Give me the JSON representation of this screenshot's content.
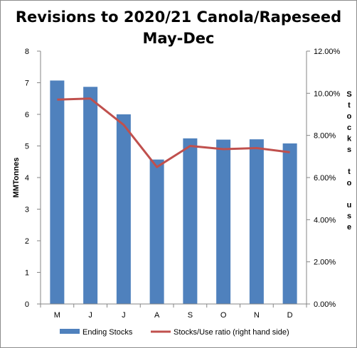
{
  "chart_data": {
    "type": "bar",
    "title_lines": [
      "Revisions to 2020/21 Canola/Rapeseed",
      "May-Dec"
    ],
    "categories": [
      "M",
      "J",
      "J",
      "A",
      "S",
      "O",
      "N",
      "D"
    ],
    "ylabel": "MMTonnes",
    "y2label": "Stocks to use",
    "ylim": [
      0,
      8
    ],
    "yticks": [
      "0",
      "1",
      "2",
      "3",
      "4",
      "5",
      "6",
      "7",
      "8"
    ],
    "y2lim": [
      0,
      12
    ],
    "y2ticks": [
      "0.00%",
      "2.00%",
      "4.00%",
      "6.00%",
      "8.00%",
      "10.00%",
      "12.00%"
    ],
    "series": [
      {
        "name": "Ending Stocks",
        "type": "bar",
        "axis": "left",
        "color": "#4f81bd",
        "values": [
          7.07,
          6.87,
          6.0,
          4.57,
          5.24,
          5.2,
          5.21,
          5.08
        ]
      },
      {
        "name": "Stocks/Use ratio (right hand side)",
        "type": "line",
        "axis": "right",
        "color": "#c0504d",
        "values": [
          9.7,
          9.75,
          8.5,
          6.5,
          7.5,
          7.35,
          7.4,
          7.2
        ]
      }
    ],
    "grid": false,
    "legend": "bottom"
  }
}
